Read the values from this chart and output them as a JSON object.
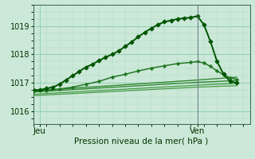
{
  "xlabel": "Pression niveau de la mer( hPa )",
  "bg_color": "#cce8d8",
  "grid_color_major": "#88ccaa",
  "grid_color_minor": "#aaddc0",
  "ylim": [
    1015.55,
    1019.75
  ],
  "yticks": [
    1016,
    1017,
    1018,
    1019
  ],
  "xlim": [
    0,
    33
  ],
  "x_ticks": [
    1,
    25
  ],
  "x_tick_labels": [
    "Jeu",
    "Ven"
  ],
  "vline_x": 25,
  "vline_color": "#667788",
  "series": [
    {
      "x": [
        0,
        1,
        2,
        3,
        4,
        5,
        6,
        7,
        8,
        9,
        10,
        11,
        12,
        13,
        14,
        15,
        16,
        17,
        18,
        19,
        20,
        21,
        22,
        23,
        24,
        25,
        26,
        27,
        28,
        29,
        30,
        31
      ],
      "y": [
        1016.75,
        1016.75,
        1016.8,
        1016.85,
        1016.95,
        1017.1,
        1017.25,
        1017.4,
        1017.55,
        1017.65,
        1017.78,
        1017.9,
        1018.0,
        1018.12,
        1018.28,
        1018.44,
        1018.62,
        1018.78,
        1018.92,
        1019.05,
        1019.15,
        1019.2,
        1019.25,
        1019.28,
        1019.3,
        1019.35,
        1019.05,
        1018.45,
        1017.75,
        1017.3,
        1017.05,
        1017.0
      ],
      "marker": "D",
      "markersize": 2.8,
      "lw": 1.4,
      "color": "#005500",
      "zorder": 5
    },
    {
      "x": [
        0,
        2,
        4,
        6,
        8,
        10,
        12,
        14,
        16,
        18,
        20,
        22,
        24,
        25,
        26,
        27,
        28,
        29,
        30,
        31
      ],
      "y": [
        1016.7,
        1016.72,
        1016.78,
        1016.85,
        1016.95,
        1017.05,
        1017.2,
        1017.3,
        1017.42,
        1017.52,
        1017.6,
        1017.68,
        1017.72,
        1017.75,
        1017.7,
        1017.58,
        1017.42,
        1017.28,
        1017.18,
        1017.12
      ],
      "marker": "D",
      "markersize": 2.2,
      "lw": 1.1,
      "color": "#227722",
      "zorder": 4
    },
    {
      "x": [
        0,
        25,
        31
      ],
      "y": [
        1016.72,
        1017.1,
        1017.2
      ],
      "marker": null,
      "lw": 1.0,
      "color": "#338833",
      "zorder": 3
    },
    {
      "x": [
        0,
        25,
        31
      ],
      "y": [
        1016.68,
        1017.02,
        1017.08
      ],
      "marker": null,
      "lw": 1.0,
      "color": "#338833",
      "zorder": 3
    },
    {
      "x": [
        0,
        25,
        31
      ],
      "y": [
        1016.6,
        1016.92,
        1016.98
      ],
      "marker": null,
      "lw": 0.9,
      "color": "#449944",
      "zorder": 2
    },
    {
      "x": [
        0,
        25,
        31
      ],
      "y": [
        1016.55,
        1016.85,
        1016.9
      ],
      "marker": null,
      "lw": 0.9,
      "color": "#449944",
      "zorder": 2
    }
  ]
}
